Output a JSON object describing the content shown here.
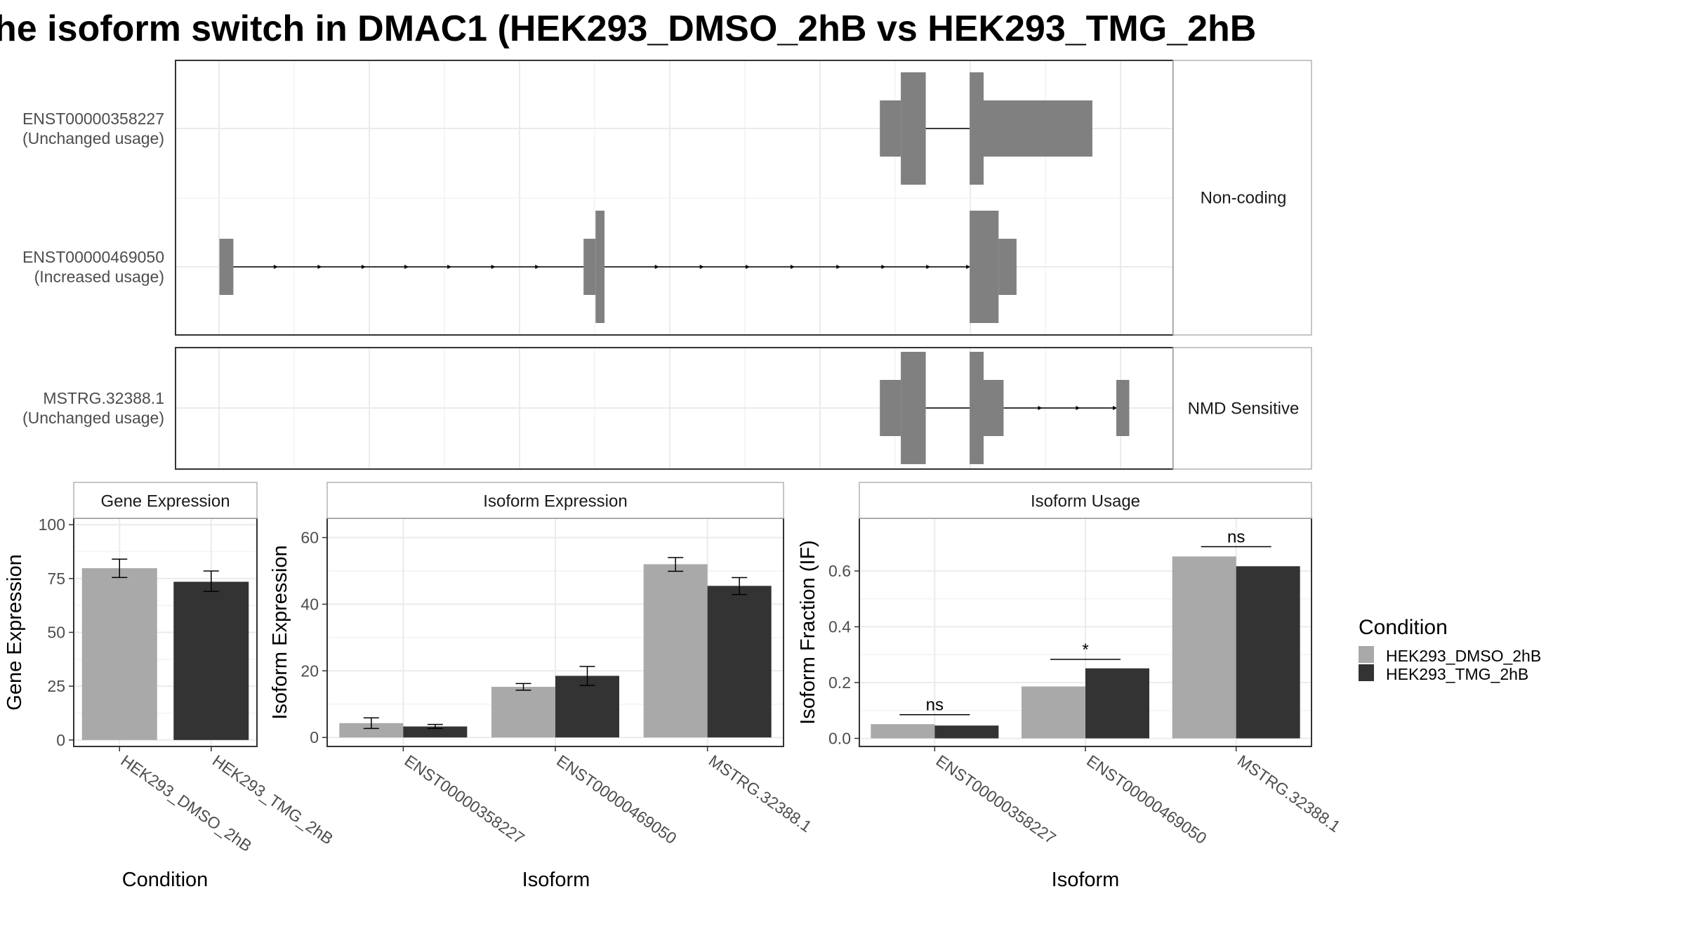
{
  "title": "he isoform switch in DMAC1 (HEK293_DMSO_2hB vs HEK293_TMG_2hB",
  "colors": {
    "dmso": "#a9a9a9",
    "tmg": "#333333",
    "exon": "#808080",
    "grid": "#ebebeb",
    "frame": "#333333",
    "strip_border": "#b3b3b3"
  },
  "structure": {
    "panels": [
      {
        "strip_label": "Non-coding",
        "transcripts": [
          {
            "id": "ENST00000358227",
            "usage": "(Unchanged usage)",
            "blocks": [
              [
                0.706,
                0.727,
                "utr"
              ],
              [
                0.727,
                0.752,
                "cds"
              ],
              [
                0.796,
                0.81,
                "cds"
              ],
              [
                0.81,
                0.919,
                "utr"
              ]
            ],
            "introns": [
              [
                0.752,
                0.796
              ]
            ],
            "arrows": []
          },
          {
            "id": "ENST00000469050",
            "usage": "(Increased usage)",
            "blocks": [
              [
                0.044,
                0.058,
                "utr"
              ],
              [
                0.409,
                0.421,
                "utr"
              ],
              [
                0.421,
                0.43,
                "cds"
              ],
              [
                0.796,
                0.825,
                "cds"
              ],
              [
                0.825,
                0.843,
                "utr"
              ]
            ],
            "introns": [
              [
                0.058,
                0.409
              ],
              [
                0.43,
                0.796
              ]
            ],
            "arrows": [
              0.102,
              0.146,
              0.19,
              0.233,
              0.276,
              0.32,
              0.364,
              0.484,
              0.529,
              0.575,
              0.62,
              0.666,
              0.711,
              0.756,
              0.796
            ]
          }
        ]
      },
      {
        "strip_label": "NMD Sensitive",
        "transcripts": [
          {
            "id": "MSTRG.32388.1",
            "usage": "(Unchanged usage)",
            "blocks": [
              [
                0.706,
                0.727,
                "utr"
              ],
              [
                0.727,
                0.752,
                "cds"
              ],
              [
                0.796,
                0.81,
                "cds"
              ],
              [
                0.81,
                0.83,
                "utr"
              ],
              [
                0.943,
                0.956,
                "utr"
              ]
            ],
            "introns": [
              [
                0.752,
                0.796
              ],
              [
                0.83,
                0.943
              ]
            ],
            "arrows": [
              0.868,
              0.906,
              0.943
            ]
          }
        ]
      }
    ]
  },
  "chart_data": [
    {
      "type": "bar",
      "strip": "Gene Expression",
      "xlabel": "Condition",
      "ylabel": "Gene Expression",
      "ylim": [
        -3,
        103
      ],
      "yticks": [
        0,
        25,
        50,
        75,
        100
      ],
      "categories": [
        "HEK293_DMSO_2hB",
        "HEK293_TMG_2hB"
      ],
      "series": [
        {
          "name": "HEK293_DMSO_2hB",
          "values": [
            79.8,
            null
          ],
          "err": [
            [
              75.5,
              84.0
            ],
            null
          ]
        },
        {
          "name": "HEK293_TMG_2hB",
          "values": [
            null,
            73.5
          ],
          "err": [
            null,
            [
              69.0,
              78.5
            ]
          ]
        }
      ]
    },
    {
      "type": "bar",
      "strip": "Isoform Expression",
      "xlabel": "Isoform",
      "ylabel": "Isoform Expression",
      "ylim": [
        -2.7,
        65.8
      ],
      "yticks": [
        0,
        20,
        40,
        60
      ],
      "categories": [
        "ENST00000358227",
        "ENST00000469050",
        "MSTRG.32388.1"
      ],
      "series": [
        {
          "name": "HEK293_DMSO_2hB",
          "values": [
            4.3,
            15.2,
            52.0
          ],
          "err": [
            [
              2.7,
              5.9
            ],
            [
              14.2,
              16.2
            ],
            [
              49.9,
              54.0
            ]
          ]
        },
        {
          "name": "HEK293_TMG_2hB",
          "values": [
            3.3,
            18.5,
            45.5
          ],
          "err": [
            [
              2.7,
              3.9
            ],
            [
              15.6,
              21.3
            ],
            [
              42.9,
              48.0
            ]
          ]
        }
      ]
    },
    {
      "type": "bar",
      "strip": "Isoform Usage",
      "xlabel": "Isoform",
      "ylabel": "Isoform Fraction (IF)",
      "ylim": [
        -0.029,
        0.789
      ],
      "yticks": [
        0.0,
        0.2,
        0.4,
        0.6
      ],
      "ytick_labels": [
        "0.0",
        "0.2",
        "0.4",
        "0.6"
      ],
      "categories": [
        "ENST00000358227",
        "ENST00000469050",
        "MSTRG.32388.1"
      ],
      "series": [
        {
          "name": "HEK293_DMSO_2hB",
          "values": [
            0.051,
            0.186,
            0.652
          ]
        },
        {
          "name": "HEK293_TMG_2hB",
          "values": [
            0.046,
            0.251,
            0.617
          ]
        }
      ],
      "significance": [
        {
          "label": "ns",
          "y": 0.085
        },
        {
          "label": "*",
          "y": 0.283
        },
        {
          "label": "ns",
          "y": 0.687
        }
      ]
    }
  ],
  "legend": {
    "title": "Condition",
    "items": [
      "HEK293_DMSO_2hB",
      "HEK293_TMG_2hB"
    ]
  }
}
